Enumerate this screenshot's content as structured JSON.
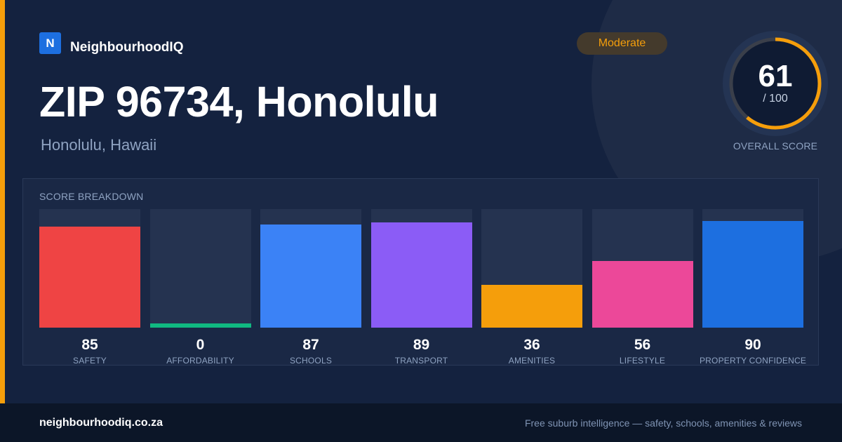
{
  "brand": {
    "logo_letter": "N",
    "name": "NeighbourhoodIQ"
  },
  "rating_badge": "Moderate",
  "title": "ZIP 96734, Honolulu",
  "location": "Honolulu, Hawaii",
  "overall_score": {
    "value": "61",
    "max": "/ 100",
    "label": "OVERALL SCORE",
    "fraction": 0.61
  },
  "breakdown": {
    "title": "SCORE BREAKDOWN"
  },
  "chart_data": {
    "type": "bar",
    "categories": [
      "SAFETY",
      "AFFORDABILITY",
      "SCHOOLS",
      "TRANSPORT",
      "AMENITIES",
      "LIFESTYLE",
      "PROPERTY CONFIDENCE"
    ],
    "values": [
      85,
      0,
      87,
      89,
      36,
      56,
      90
    ],
    "ylim": [
      0,
      100
    ],
    "colors": [
      "#ef4444",
      "#10b981",
      "#3b82f6",
      "#8b5cf6",
      "#f59e0b",
      "#ec4899",
      "#1d6fe0"
    ]
  },
  "colors": {
    "accent": "#f59e0b",
    "background": "#14223f",
    "brand": "#1d6fe0"
  },
  "footer": {
    "domain": "neighbourhoodiq.co.za",
    "tagline": "Free suburb intelligence — safety, schools, amenities & reviews"
  }
}
